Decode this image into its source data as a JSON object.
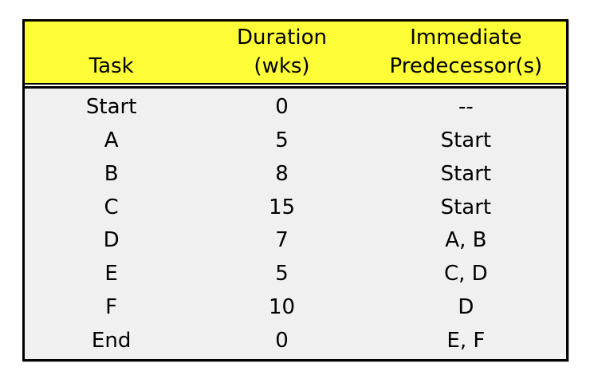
{
  "colors": {
    "page_bg": "#ffffff",
    "header_bg": "#fdfd37",
    "body_bg": "#f0f0f0",
    "border": "#000000",
    "text": "#000000"
  },
  "table": {
    "header": [
      {
        "line1": "",
        "line2": "Task"
      },
      {
        "line1": "Duration",
        "line2": "(wks)"
      },
      {
        "line1": "Immediate",
        "line2": "Predecessor(s)"
      }
    ],
    "rows": [
      [
        "Start",
        "0",
        "--"
      ],
      [
        "A",
        "5",
        "Start"
      ],
      [
        "B",
        "8",
        "Start"
      ],
      [
        "C",
        "15",
        "Start"
      ],
      [
        "D",
        "7",
        "A, B"
      ],
      [
        "E",
        "5",
        "C, D"
      ],
      [
        "F",
        "10",
        "D"
      ],
      [
        "End",
        "0",
        "E, F"
      ]
    ]
  }
}
